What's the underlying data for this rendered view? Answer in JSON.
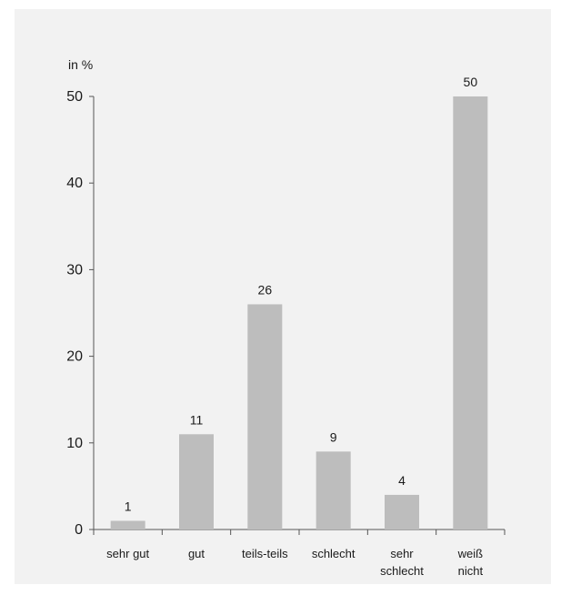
{
  "chart_data": {
    "type": "bar",
    "unit_label": "in %",
    "categories": [
      [
        "sehr gut"
      ],
      [
        "gut"
      ],
      [
        "teils-teils"
      ],
      [
        "schlecht"
      ],
      [
        "sehr",
        "schlecht"
      ],
      [
        "weiß",
        "nicht"
      ]
    ],
    "values": [
      1,
      11,
      26,
      9,
      4,
      50
    ],
    "data_labels": [
      "1",
      "11",
      "26",
      "9",
      "4",
      "50"
    ],
    "y_ticks": [
      0,
      10,
      20,
      30,
      40,
      50
    ],
    "ylim": [
      0,
      50
    ],
    "bar_color": "#bdbdbd",
    "grid": false
  }
}
